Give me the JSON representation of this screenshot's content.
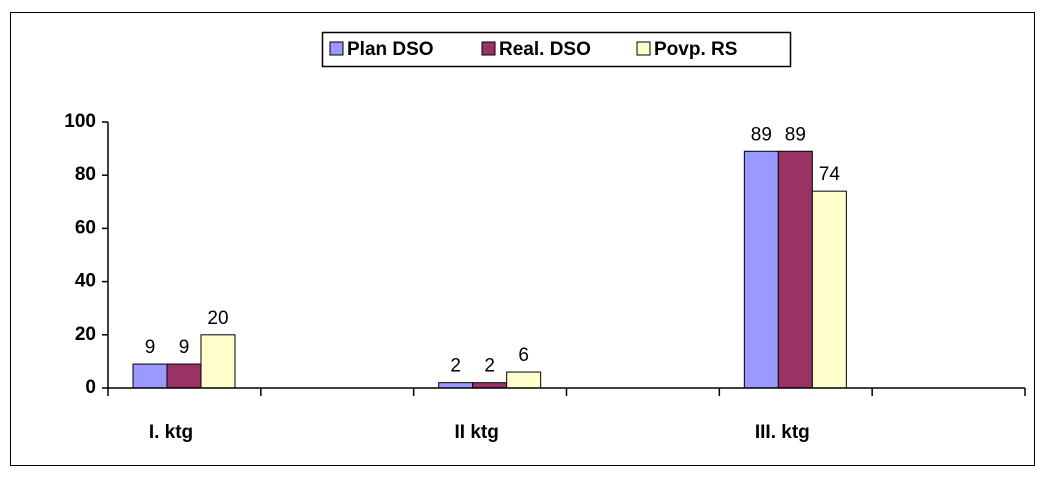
{
  "chart_data": {
    "type": "bar",
    "categories": [
      "I. ktg",
      "II ktg",
      "III. ktg"
    ],
    "series": [
      {
        "name": "Plan DSO",
        "color": "#9999ff",
        "values": [
          9,
          2,
          89
        ]
      },
      {
        "name": "Real. DSO",
        "color": "#993366",
        "values": [
          9,
          2,
          89
        ]
      },
      {
        "name": "Povp. RS",
        "color": "#ffffcc",
        "values": [
          20,
          6,
          74
        ]
      }
    ],
    "ylim": [
      0,
      100
    ],
    "yticks": [
      0,
      20,
      40,
      60,
      80,
      100
    ],
    "grid": false,
    "legend": "top"
  }
}
